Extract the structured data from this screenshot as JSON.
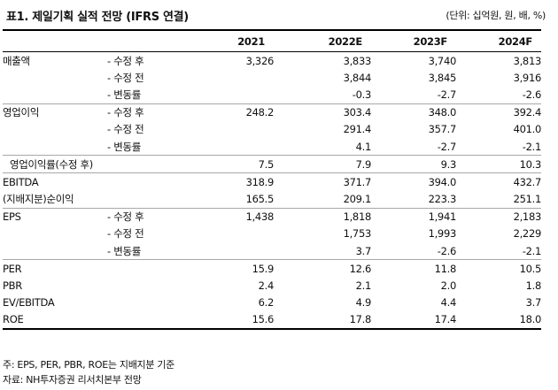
{
  "title": "표1. 제일기획 실적 전망 (IFRS 연결)",
  "unit": "(단위: 십억원, 원, 배, %)",
  "columns": [
    "2021",
    "2022E",
    "2023F",
    "2024F"
  ],
  "rows": [
    {
      "label": "매출액",
      "sub": "- 수정 후",
      "values": [
        "3,326",
        "3,833",
        "3,740",
        "3,813"
      ]
    },
    {
      "label": "",
      "sub": "- 수정 전",
      "values": [
        "",
        "3,844",
        "3,845",
        "3,916"
      ]
    },
    {
      "label": "",
      "sub": "- 변동률",
      "values": [
        "",
        "-0.3",
        "-2.7",
        "-2.6"
      ]
    },
    {
      "label": "영업이익",
      "sub": "- 수정 후",
      "values": [
        "248.2",
        "303.4",
        "348.0",
        "392.4"
      ]
    },
    {
      "label": "",
      "sub": "- 수정 전",
      "values": [
        "",
        "291.4",
        "357.7",
        "401.0"
      ]
    },
    {
      "label": "",
      "sub": "- 변동률",
      "values": [
        "",
        "4.1",
        "-2.7",
        "-2.1"
      ]
    },
    {
      "label": "영업이익률(수정 후)",
      "sub": "",
      "values": [
        "7.5",
        "7.9",
        "9.3",
        "10.3"
      ]
    },
    {
      "label": "EBITDA",
      "sub": "",
      "values": [
        "318.9",
        "371.7",
        "394.0",
        "432.7"
      ]
    },
    {
      "label": "(지배지분)순이익",
      "sub": "",
      "values": [
        "165.5",
        "209.1",
        "223.3",
        "251.1"
      ]
    },
    {
      "label": "EPS",
      "sub": "- 수정 후",
      "values": [
        "1,438",
        "1,818",
        "1,941",
        "2,183"
      ]
    },
    {
      "label": "",
      "sub": "- 수정 전",
      "values": [
        "",
        "1,753",
        "1,993",
        "2,229"
      ]
    },
    {
      "label": "",
      "sub": "- 변동률",
      "values": [
        "",
        "3.7",
        "-2.6",
        "-2.1"
      ]
    },
    {
      "label": "PER",
      "sub": "",
      "values": [
        "15.9",
        "12.6",
        "11.8",
        "10.5"
      ]
    },
    {
      "label": "PBR",
      "sub": "",
      "values": [
        "2.4",
        "2.1",
        "2.0",
        "1.8"
      ]
    },
    {
      "label": "EV/EBITDA",
      "sub": "",
      "values": [
        "6.2",
        "4.9",
        "4.4",
        "3.7"
      ]
    },
    {
      "label": "ROE",
      "sub": "",
      "values": [
        "15.6",
        "17.8",
        "17.4",
        "18.0"
      ]
    }
  ],
  "notes": [
    "주: EPS, PER, PBR, ROE는 지배지분 기준",
    "자료: NH투자증권 리서치본부 전망"
  ]
}
